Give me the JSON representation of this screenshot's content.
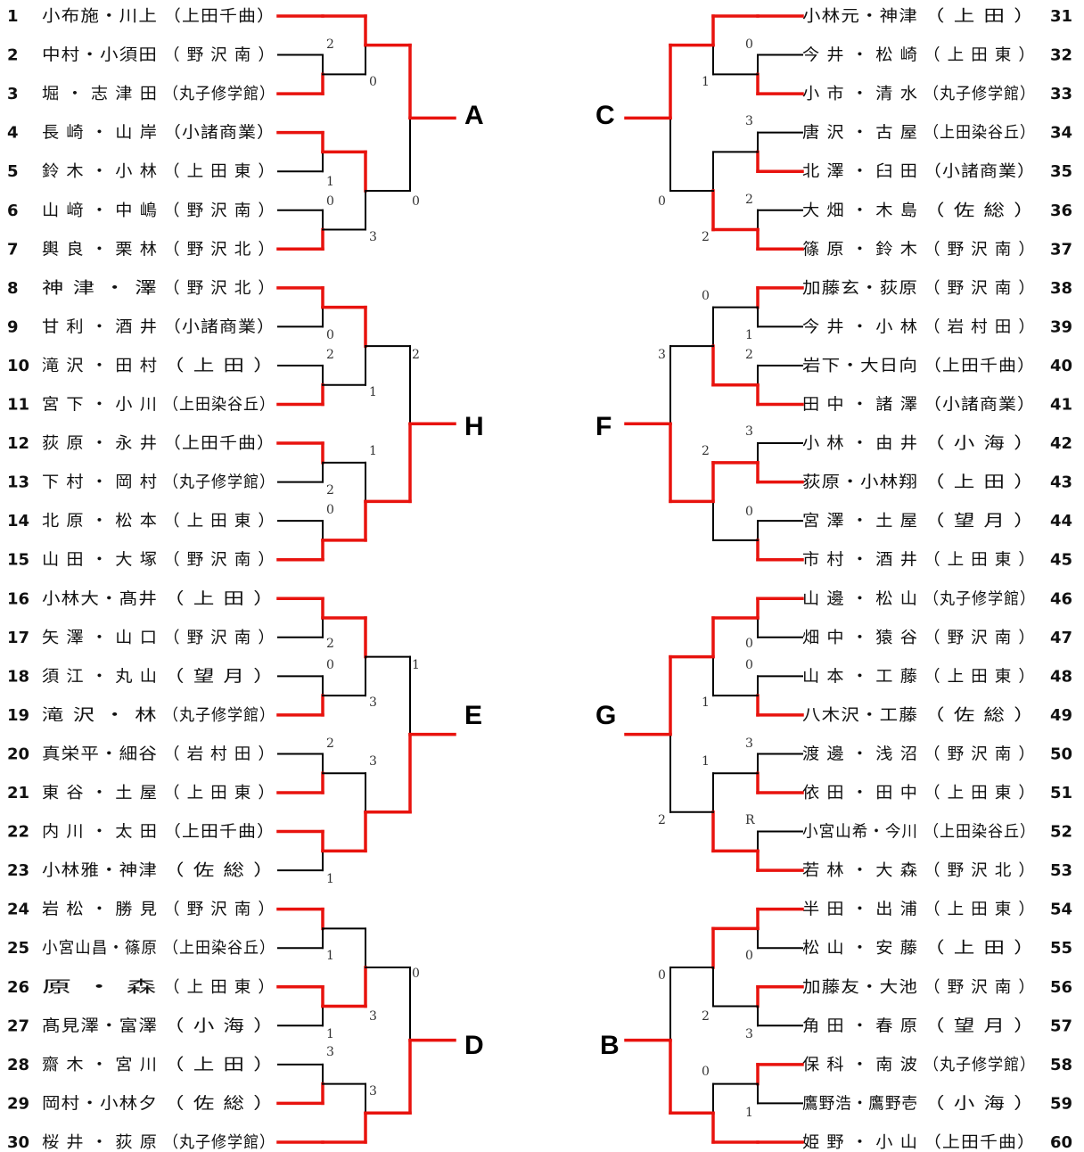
{
  "colors": {
    "winner": "#e8130e",
    "loser": "#000000"
  },
  "left_entries": [
    {
      "no": "1",
      "names": "小布施・川上",
      "school": "（上田千曲）"
    },
    {
      "no": "2",
      "names": "中村・小須田",
      "school": "（ 野 沢 南 ）"
    },
    {
      "no": "3",
      "names": "堀 ・ 志 津 田",
      "school": "（丸子修学館）"
    },
    {
      "no": "4",
      "names": "長 崎 ・ 山 岸",
      "school": "（小諸商業）"
    },
    {
      "no": "5",
      "names": "鈴 木 ・ 小 林",
      "school": "（ 上 田 東 ）"
    },
    {
      "no": "6",
      "names": "山 﨑 ・ 中 嶋",
      "school": "（ 野 沢 南 ）"
    },
    {
      "no": "7",
      "names": "輿 良 ・ 栗 林",
      "school": "（ 野 沢 北 ）"
    },
    {
      "no": "8",
      "names": "神 津 ・ 澤",
      "school": "（ 野 沢 北 ）"
    },
    {
      "no": "9",
      "names": "甘 利 ・ 酒 井",
      "school": "（小諸商業）"
    },
    {
      "no": "10",
      "names": "滝 沢 ・ 田 村",
      "school": "（ 上 田 ）"
    },
    {
      "no": "11",
      "names": "宮 下 ・ 小 川",
      "school": "（上田染谷丘）"
    },
    {
      "no": "12",
      "names": "荻 原 ・ 永 井",
      "school": "（上田千曲）"
    },
    {
      "no": "13",
      "names": "下 村 ・ 岡 村",
      "school": "（丸子修学館）"
    },
    {
      "no": "14",
      "names": "北 原 ・ 松 本",
      "school": "（ 上 田 東 ）"
    },
    {
      "no": "15",
      "names": "山 田 ・ 大 塚",
      "school": "（ 野 沢 南 ）"
    },
    {
      "no": "16",
      "names": "小林大・髙井",
      "school": "（ 上 田 ）"
    },
    {
      "no": "17",
      "names": "矢 澤 ・ 山 口",
      "school": "（ 野 沢 南 ）"
    },
    {
      "no": "18",
      "names": "須 江 ・ 丸 山",
      "school": "（ 望 月 ）"
    },
    {
      "no": "19",
      "names": "滝 沢 ・ 林",
      "school": "（丸子修学館）"
    },
    {
      "no": "20",
      "names": "真栄平・細谷",
      "school": "（ 岩 村 田 ）"
    },
    {
      "no": "21",
      "names": "東 谷 ・ 土 屋",
      "school": "（ 上 田 東 ）"
    },
    {
      "no": "22",
      "names": "内 川 ・ 太 田",
      "school": "（上田千曲）"
    },
    {
      "no": "23",
      "names": "小林雅・神津",
      "school": "（ 佐 総 ）"
    },
    {
      "no": "24",
      "names": "岩 松 ・ 勝 見",
      "school": "（ 野 沢 南 ）"
    },
    {
      "no": "25",
      "names": "小宮山昌・篠原",
      "school": "（上田染谷丘）"
    },
    {
      "no": "26",
      "names": "原 ・ 森",
      "school": "（ 上 田 東 ）"
    },
    {
      "no": "27",
      "names": "髙見澤・富澤",
      "school": "（ 小 海 ）"
    },
    {
      "no": "28",
      "names": "齋 木 ・ 宮 川",
      "school": "（ 上 田 ）"
    },
    {
      "no": "29",
      "names": "岡村・小林夕",
      "school": "（ 佐 総 ）"
    },
    {
      "no": "30",
      "names": "桜 井 ・ 荻 原",
      "school": "（丸子修学館）"
    }
  ],
  "right_entries": [
    {
      "no": "31",
      "names": "小林元・神津",
      "school": "（ 上 田 ）"
    },
    {
      "no": "32",
      "names": "今 井 ・ 松 崎",
      "school": "（ 上 田 東 ）"
    },
    {
      "no": "33",
      "names": "小 市 ・ 清 水",
      "school": "（丸子修学館）"
    },
    {
      "no": "34",
      "names": "唐 沢 ・ 古 屋",
      "school": "（上田染谷丘）"
    },
    {
      "no": "35",
      "names": "北 澤 ・ 臼 田",
      "school": "（小諸商業）"
    },
    {
      "no": "36",
      "names": "大 畑 ・ 木 島",
      "school": "（ 佐 総 ）"
    },
    {
      "no": "37",
      "names": "篠 原 ・ 鈴 木",
      "school": "（ 野 沢 南 ）"
    },
    {
      "no": "38",
      "names": "加藤玄・荻原",
      "school": "（ 野 沢 南 ）"
    },
    {
      "no": "39",
      "names": "今 井 ・ 小 林",
      "school": "（ 岩 村 田 ）"
    },
    {
      "no": "40",
      "names": "岩下・大日向",
      "school": "（上田千曲）"
    },
    {
      "no": "41",
      "names": "田 中 ・ 諸 澤",
      "school": "（小諸商業）"
    },
    {
      "no": "42",
      "names": "小 林 ・ 由 井",
      "school": "（ 小 海 ）"
    },
    {
      "no": "43",
      "names": "荻原・小林翔",
      "school": "（ 上 田 ）"
    },
    {
      "no": "44",
      "names": "宮 澤 ・ 土 屋",
      "school": "（ 望 月 ）"
    },
    {
      "no": "45",
      "names": "市 村 ・ 酒 井",
      "school": "（ 上 田 東 ）"
    },
    {
      "no": "46",
      "names": "山 邊 ・ 松 山",
      "school": "（丸子修学館）"
    },
    {
      "no": "47",
      "names": "畑 中 ・ 猿 谷",
      "school": "（ 野 沢 南 ）"
    },
    {
      "no": "48",
      "names": "山 本 ・ 工 藤",
      "school": "（ 上 田 東 ）"
    },
    {
      "no": "49",
      "names": "八木沢・工藤",
      "school": "（ 佐 総 ）"
    },
    {
      "no": "50",
      "names": "渡 邊 ・ 浅 沼",
      "school": "（ 野 沢 南 ）"
    },
    {
      "no": "51",
      "names": "依 田 ・ 田 中",
      "school": "（ 上 田 東 ）"
    },
    {
      "no": "52",
      "names": "小宮山希・今川",
      "school": "（上田染谷丘）"
    },
    {
      "no": "53",
      "names": "若 林 ・ 大 森",
      "school": "（ 野 沢 北 ）"
    },
    {
      "no": "54",
      "names": "半 田 ・ 出 浦",
      "school": "（ 上 田 東 ）"
    },
    {
      "no": "55",
      "names": "松 山 ・ 安 藤",
      "school": "（ 上 田 ）"
    },
    {
      "no": "56",
      "names": "加藤友・大池",
      "school": "（ 野 沢 南 ）"
    },
    {
      "no": "57",
      "names": "角 田 ・ 春 原",
      "school": "（ 望 月 ）"
    },
    {
      "no": "58",
      "names": "保 科 ・ 南 波",
      "school": "（丸子修学館）"
    },
    {
      "no": "59",
      "names": "鷹野浩・鷹野壱",
      "school": "（ 小 海 ）"
    },
    {
      "no": "60",
      "names": "姫 野 ・ 小 山",
      "school": "（上田千曲）"
    }
  ],
  "blocks": {
    "A": "A",
    "H": "H",
    "E": "E",
    "D": "D",
    "C": "C",
    "F": "F",
    "G": "G",
    "B": "B"
  },
  "scores": {
    "s2": "2",
    "s0a": "0",
    "s1a": "1",
    "s0b": "0",
    "s3a": "3",
    "s0c": "0",
    "s0d": "0",
    "s2a": "2",
    "s1b": "1",
    "s2b": "2",
    "s1c": "1",
    "s2c": "2",
    "s0e": "0",
    "s2d": "2",
    "s0f": "0",
    "s3b": "3",
    "s3c": "3",
    "s2e": "2",
    "s1d": "1",
    "s1e": "1",
    "s1f": "1",
    "s1g": "1",
    "s3d": "3",
    "s3e": "3",
    "s0g": "0",
    "r0a": "0",
    "r1a": "1",
    "r3a": "3",
    "r0b": "0",
    "r2a": "2",
    "r2b": "2",
    "r0c": "0",
    "r1b": "1",
    "r2c": "2",
    "r3b": "3",
    "r3c": "3",
    "r2d": "2",
    "r0d": "0",
    "r0e": "0",
    "r0f": "0",
    "r1c": "1",
    "r3d": "3",
    "r1d": "1",
    "rR": "R",
    "r2e": "2",
    "r0g": "0",
    "r0h": "0",
    "r2f": "2",
    "r3e": "3",
    "r0i": "0",
    "r1e": "1"
  }
}
